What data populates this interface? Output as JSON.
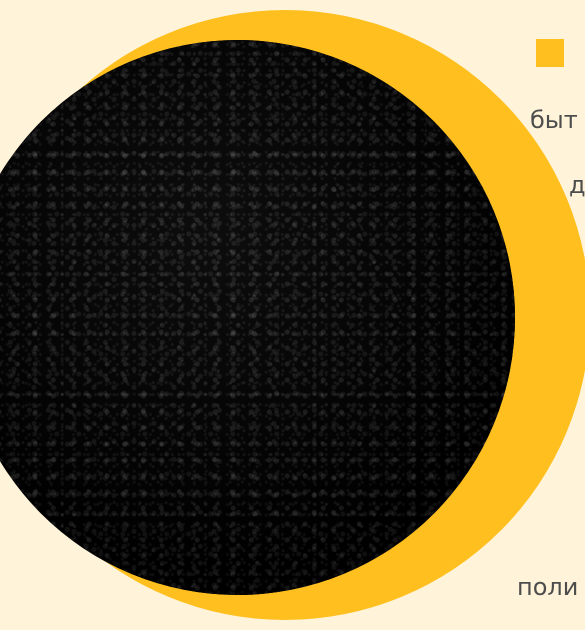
{
  "texts": {
    "line_1": "быт",
    "line_2": "д",
    "line_3": "поли"
  },
  "colors": {
    "background": "#fff4d9",
    "accent": "#ffbf1f",
    "text": "#4d4d4d",
    "pellet": "#101010"
  }
}
